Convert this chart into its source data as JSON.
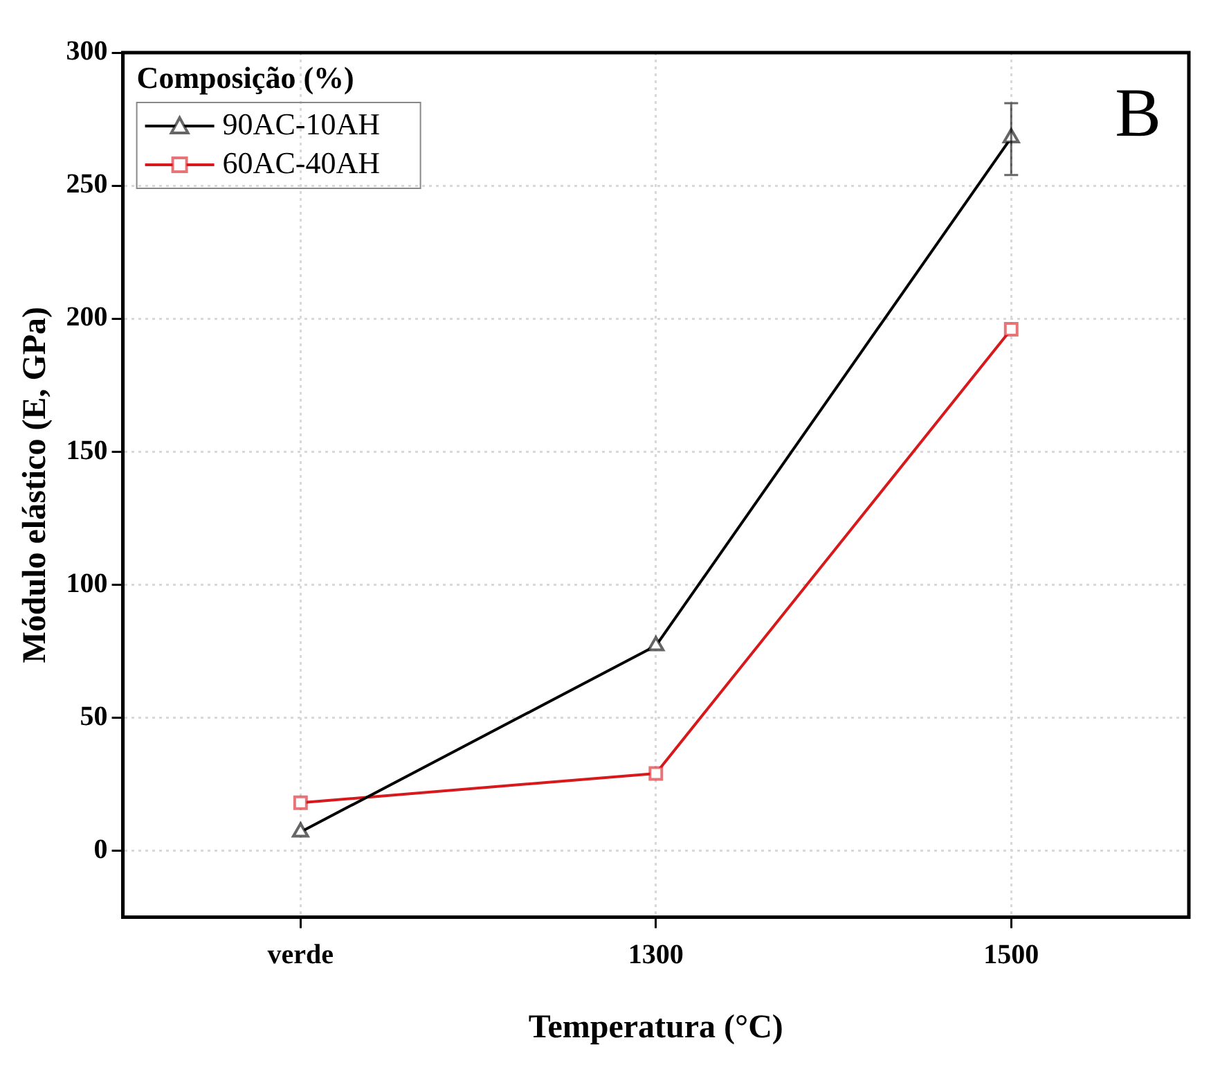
{
  "chart_data": {
    "type": "line",
    "xlabel": "Temperatura (°C)",
    "ylabel": "Módulo elástico (E, GPa)",
    "legend_title": "Composição (%)",
    "categories": [
      "verde",
      "1300",
      "1500"
    ],
    "series": [
      {
        "name": "90AC-10AH",
        "color": "#000000",
        "marker": "triangle",
        "values": [
          7,
          77,
          268
        ],
        "errors": [
          null,
          null,
          [
            254,
            281
          ]
        ]
      },
      {
        "name": "60AC-40AH",
        "color": "#d7191c",
        "marker": "square",
        "values": [
          18,
          29,
          196
        ]
      }
    ],
    "ylim": [
      -25,
      300
    ],
    "yticks": [
      0,
      50,
      100,
      150,
      200,
      250,
      300
    ],
    "grid": true,
    "legend": "top left",
    "annotations": [
      "B"
    ]
  }
}
